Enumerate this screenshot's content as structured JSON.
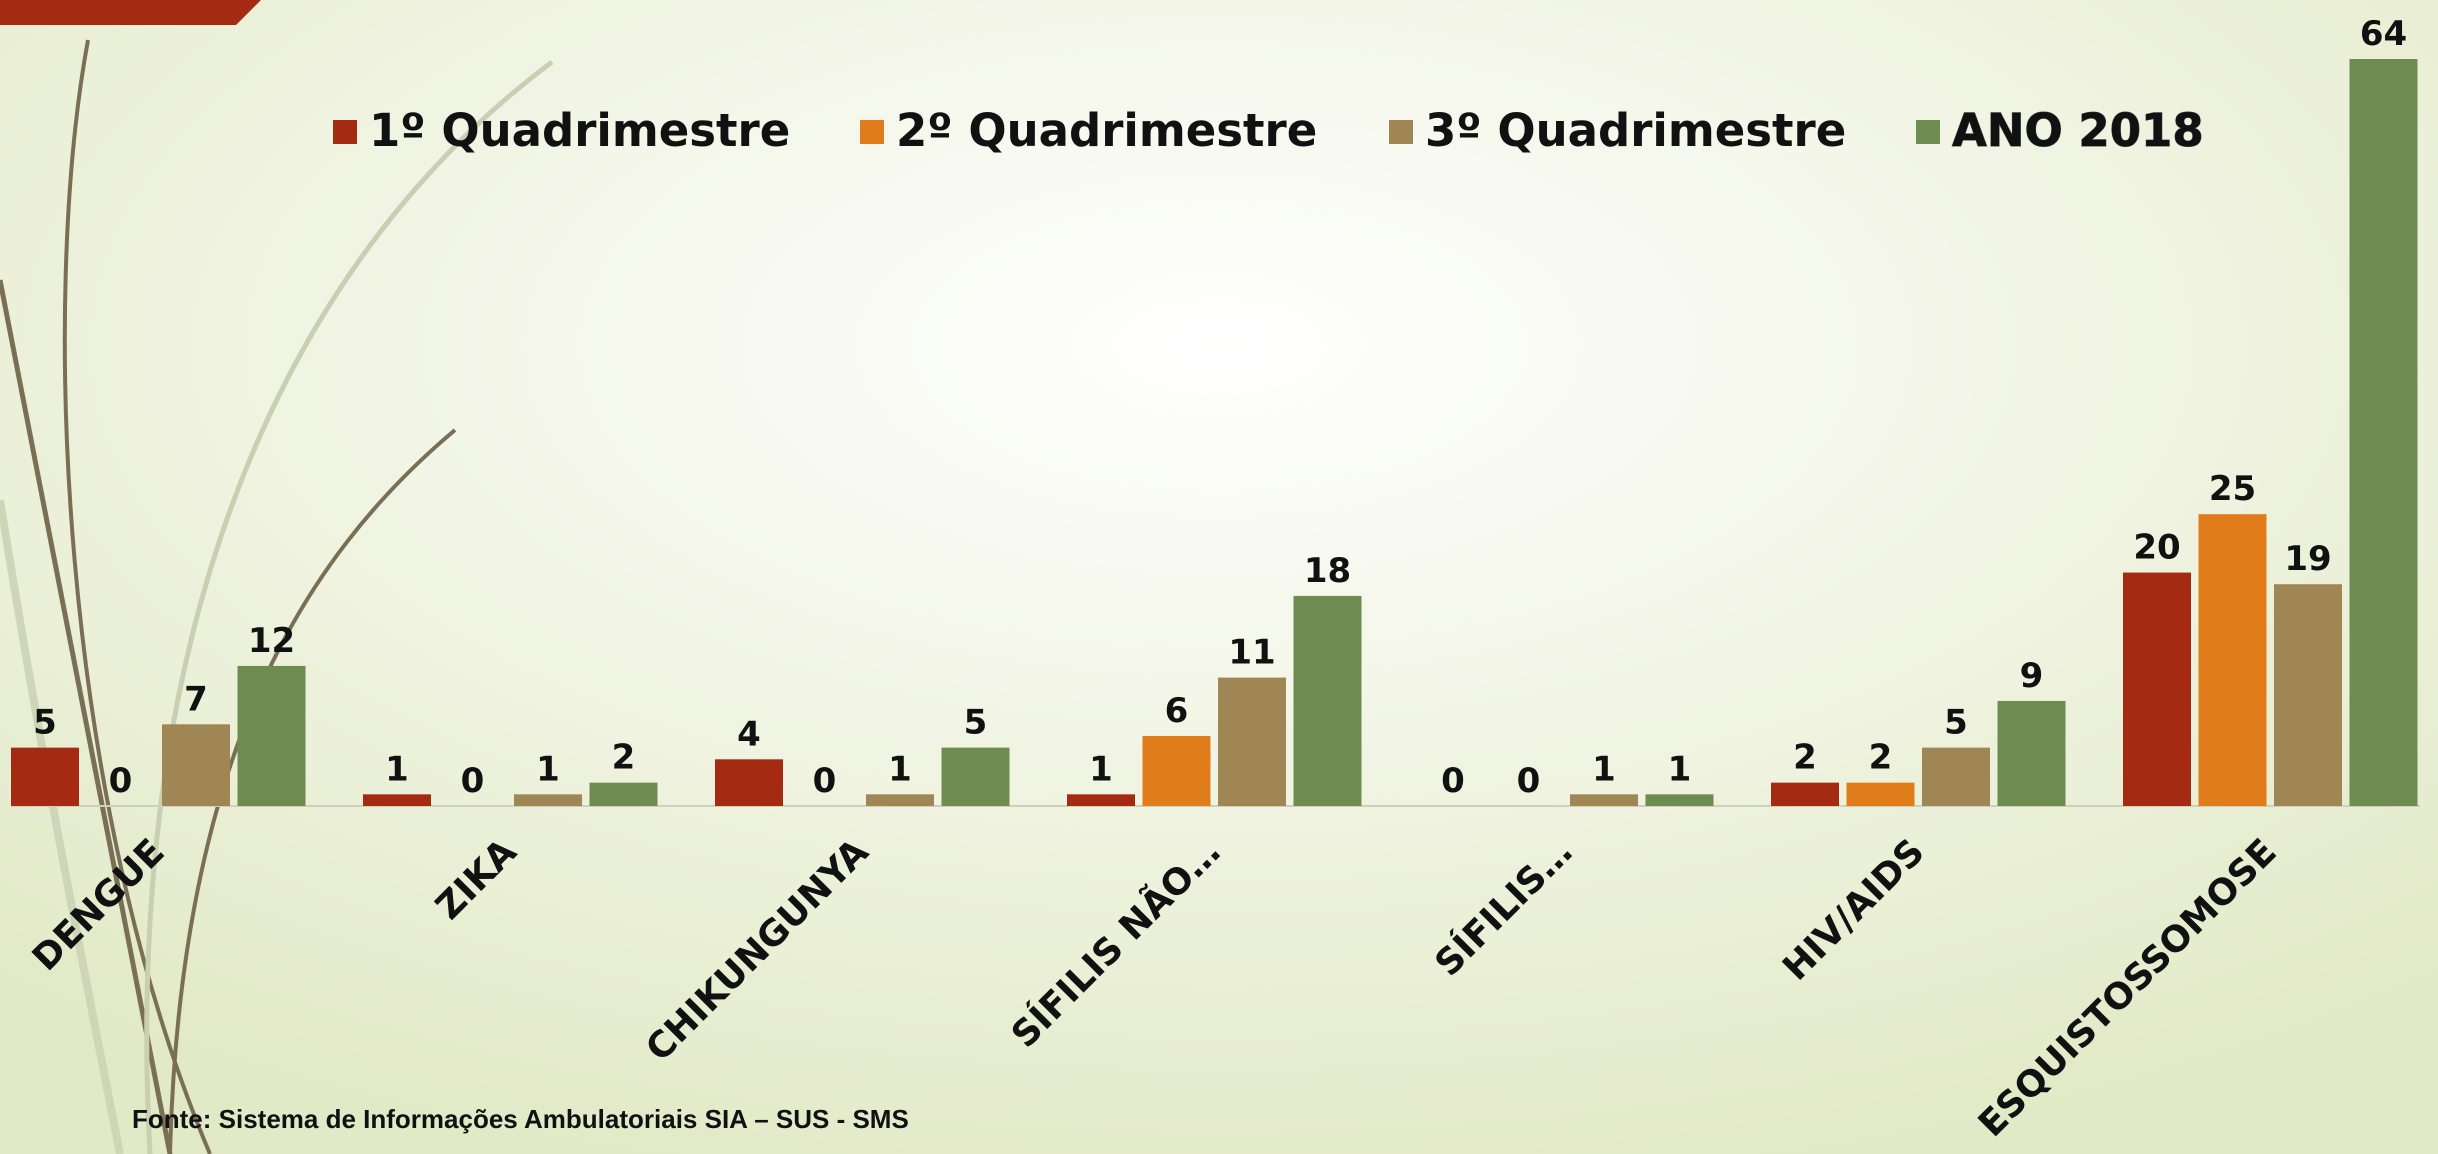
{
  "chart_data": {
    "type": "bar",
    "categories": [
      "DENGUE",
      "ZIKA",
      "CHIKUNGUNYA",
      "SÍFILIS NÃO…",
      "SÍFILIS…",
      "HIV/AIDS",
      "ESQUISTOSSOMOSE"
    ],
    "series": [
      {
        "name": "1º Quadrimestre",
        "color": "#a52a12",
        "values": [
          5,
          1,
          4,
          1,
          0,
          2,
          20
        ]
      },
      {
        "name": "2º Quadrimestre",
        "color": "#e07c1a",
        "values": [
          0,
          0,
          0,
          6,
          0,
          2,
          25
        ]
      },
      {
        "name": "3º Quadrimestre",
        "color": "#a08555",
        "values": [
          7,
          1,
          1,
          11,
          1,
          5,
          19
        ]
      },
      {
        "name": "ANO 2018",
        "color": "#6f8c50",
        "values": [
          12,
          2,
          5,
          18,
          1,
          9,
          64
        ]
      }
    ],
    "source": "Fonte: Sistema de Informações Ambulatoriais SIA – SUS - SMS"
  }
}
